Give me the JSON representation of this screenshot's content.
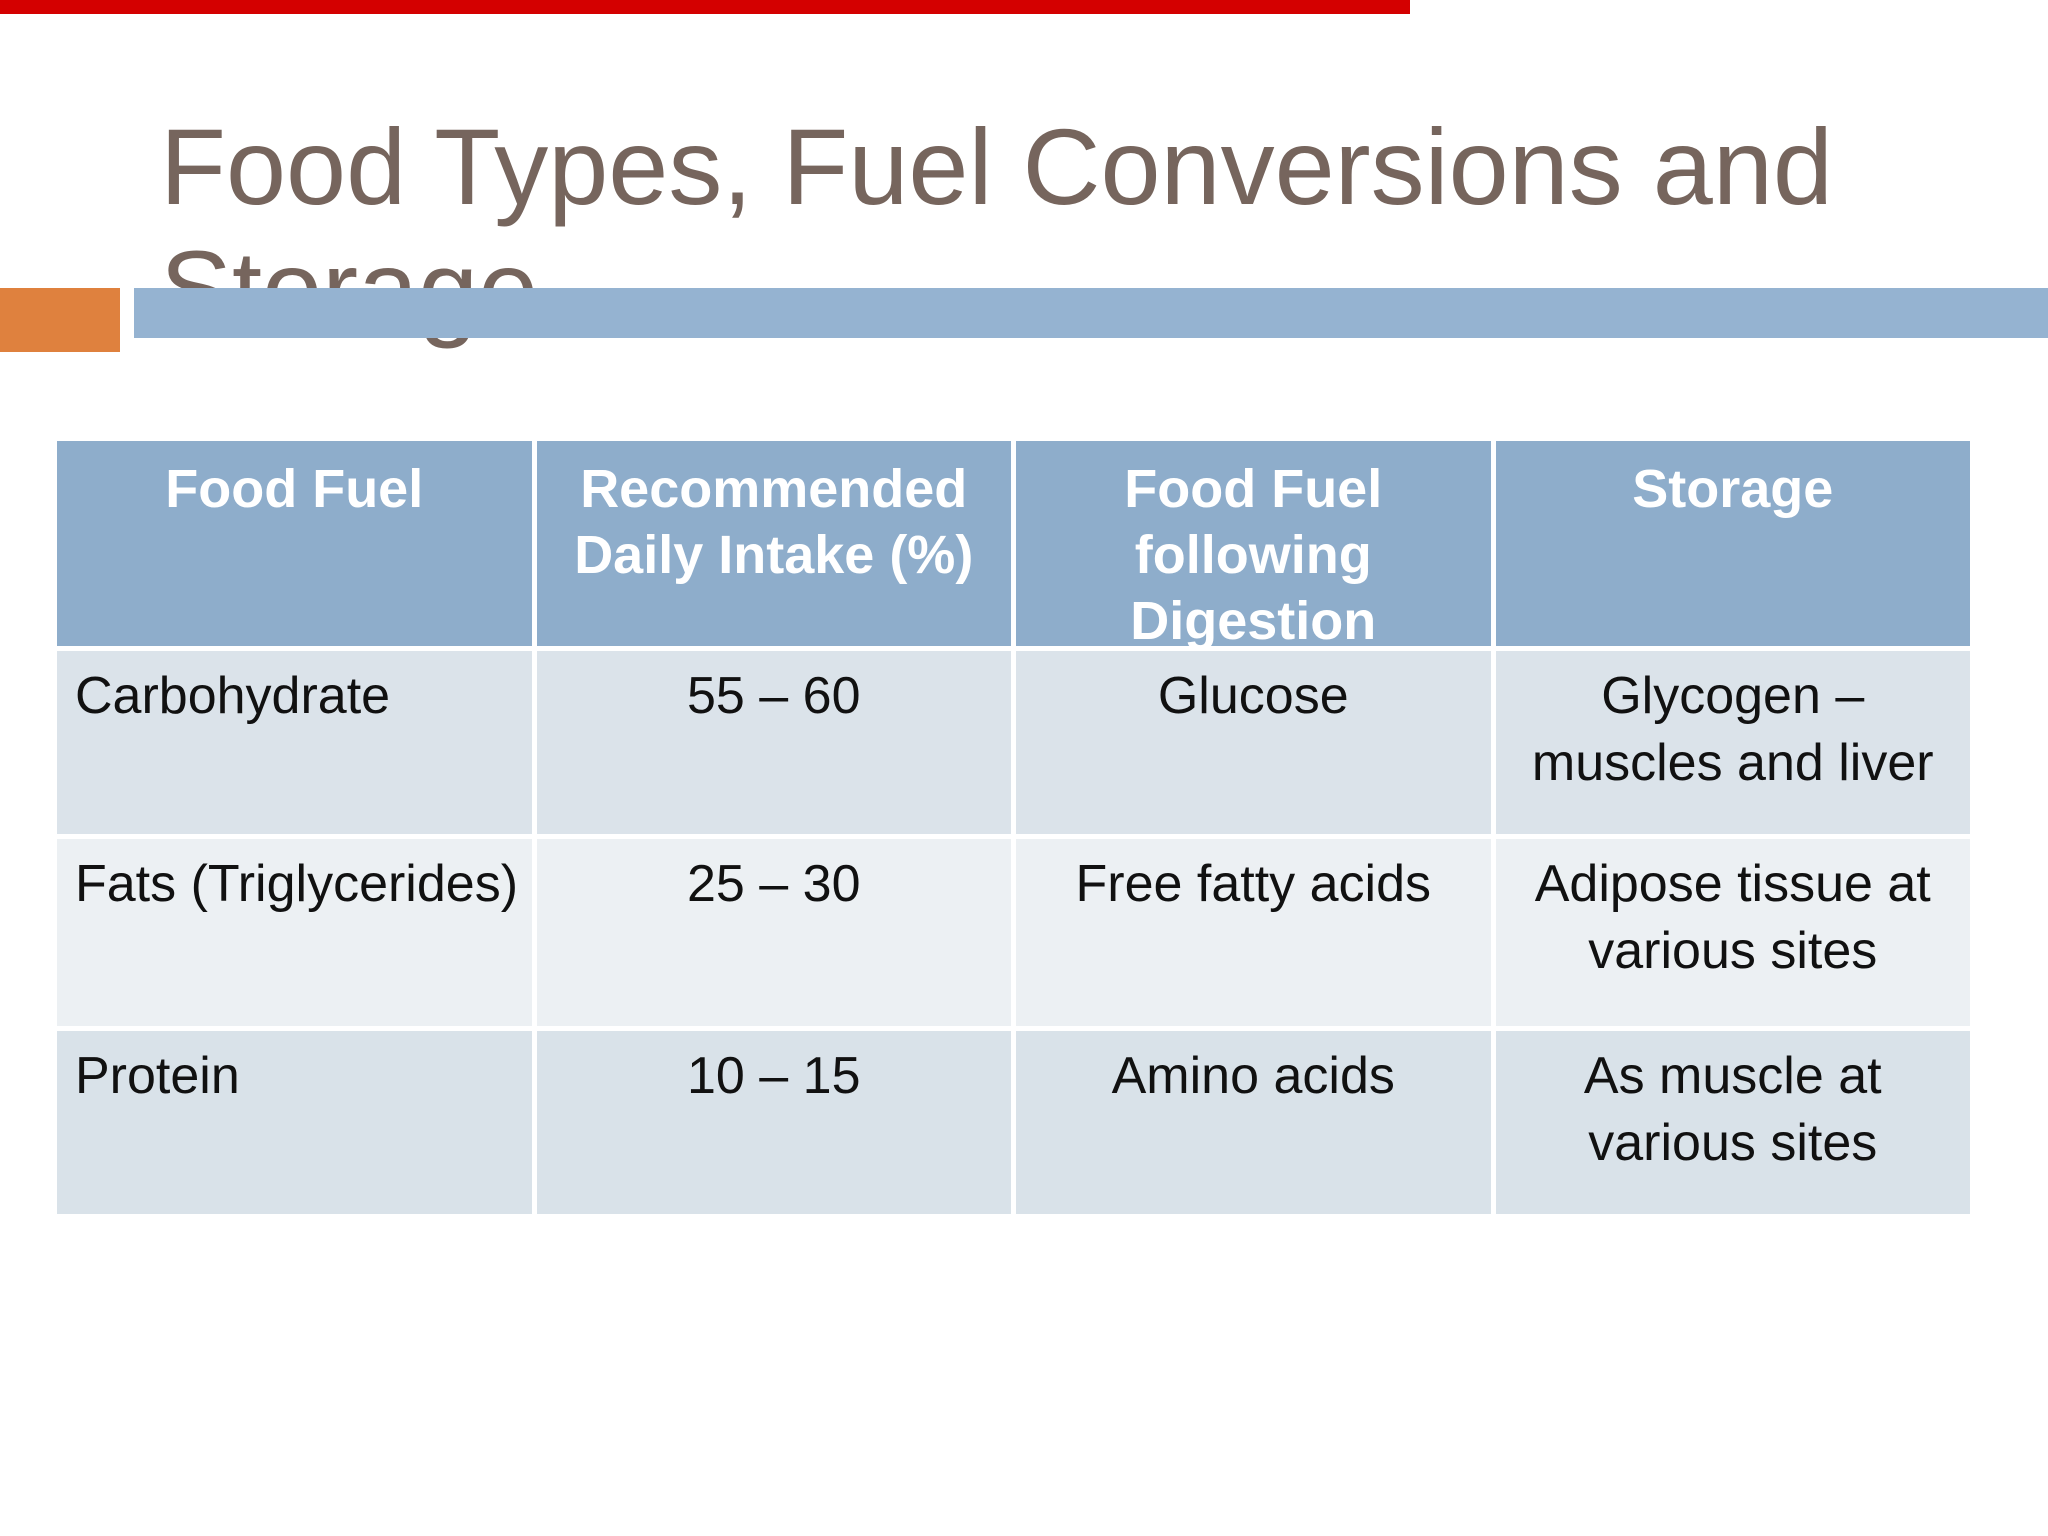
{
  "slide": {
    "title": "Food Types, Fuel Conversions and\nStorage"
  },
  "table": {
    "headers": [
      "Food Fuel",
      "Recommended\nDaily Intake (%)",
      "Food Fuel\nfollowing\nDigestion",
      "Storage"
    ],
    "rows": [
      [
        "Carbohydrate",
        "55 – 60",
        "Glucose",
        "Glycogen –\nmuscles and liver"
      ],
      [
        "Fats (Triglycerides)",
        "25 – 30",
        "Free fatty acids",
        "Adipose tissue at\nvarious sites"
      ],
      [
        "Protein",
        "10 – 15",
        "Amino acids",
        "As muscle at\nvarious sites"
      ]
    ]
  },
  "colors": {
    "top_bar_red": "#d40000",
    "title_text": "#76655d",
    "accent_orange": "#df813e",
    "accent_blue": "#95b3d1",
    "header_bg": "#8eadcb",
    "header_text": "#ffffff",
    "row1_bg": "#dbe3ea",
    "row2_bg": "#ecf0f3",
    "row3_bg": "#d9e2e9",
    "body_text": "#111111"
  }
}
